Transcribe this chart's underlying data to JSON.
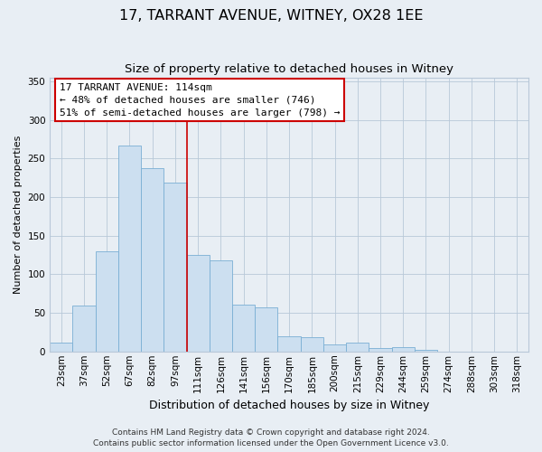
{
  "title": "17, TARRANT AVENUE, WITNEY, OX28 1EE",
  "subtitle": "Size of property relative to detached houses in Witney",
  "xlabel": "Distribution of detached houses by size in Witney",
  "ylabel": "Number of detached properties",
  "categories": [
    "23sqm",
    "37sqm",
    "52sqm",
    "67sqm",
    "82sqm",
    "97sqm",
    "111sqm",
    "126sqm",
    "141sqm",
    "156sqm",
    "170sqm",
    "185sqm",
    "200sqm",
    "215sqm",
    "229sqm",
    "244sqm",
    "259sqm",
    "274sqm",
    "288sqm",
    "303sqm",
    "318sqm"
  ],
  "values": [
    12,
    60,
    130,
    267,
    237,
    219,
    125,
    118,
    61,
    57,
    20,
    18,
    9,
    11,
    4,
    6,
    2,
    0,
    0,
    0,
    0
  ],
  "bar_color": "#ccdff0",
  "bar_edge_color": "#7aafd4",
  "marker_line_index": 6,
  "marker_line_color": "#cc0000",
  "annotation_title": "17 TARRANT AVENUE: 114sqm",
  "annotation_line1": "← 48% of detached houses are smaller (746)",
  "annotation_line2": "51% of semi-detached houses are larger (798) →",
  "annotation_box_color": "#ffffff",
  "annotation_box_edge": "#cc0000",
  "ylim": [
    0,
    355
  ],
  "yticks": [
    0,
    50,
    100,
    150,
    200,
    250,
    300,
    350
  ],
  "footer1": "Contains HM Land Registry data © Crown copyright and database right 2024.",
  "footer2": "Contains public sector information licensed under the Open Government Licence v3.0.",
  "background_color": "#e8eef4",
  "plot_background_color": "#e8eef4",
  "title_fontsize": 11.5,
  "subtitle_fontsize": 9.5,
  "xlabel_fontsize": 9,
  "ylabel_fontsize": 8,
  "tick_fontsize": 7.5,
  "annotation_fontsize": 8,
  "footer_fontsize": 6.5
}
